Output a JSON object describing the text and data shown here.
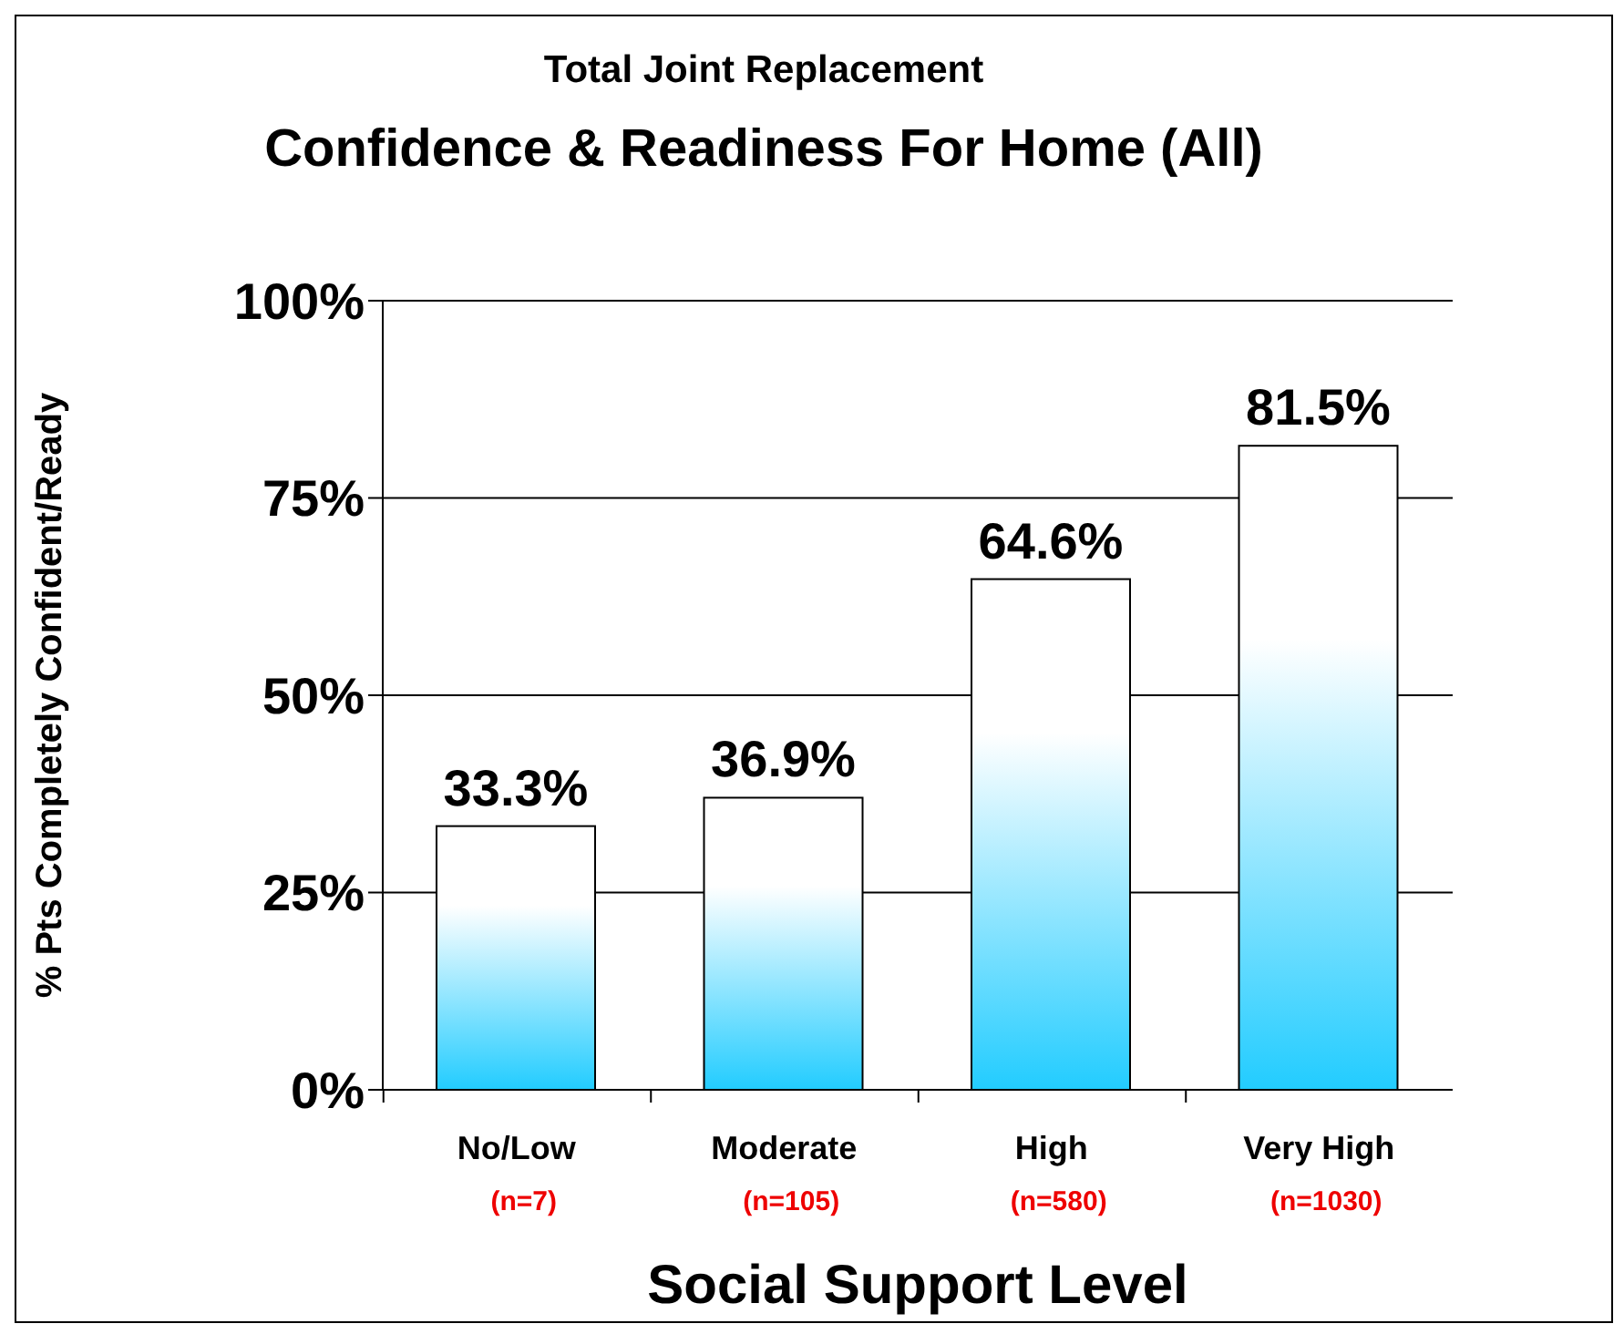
{
  "chart_data": {
    "type": "bar",
    "title": "Total Joint Replacement",
    "subtitle": "Confidence & Readiness For Home (All)",
    "xlabel": "Social Support Level",
    "ylabel": "% Pts Completely Confident/Ready",
    "categories": [
      "No/Low",
      "Moderate",
      "High",
      "Very High"
    ],
    "values": [
      33.3,
      36.9,
      64.6,
      81.5
    ],
    "color": "#22ccff",
    "value_labels": [
      "33.3%",
      "36.9%",
      "64.6%",
      "81.5%"
    ],
    "ylim": [
      0,
      100
    ],
    "yticks": [
      {
        "value": 0,
        "label": "0%"
      },
      {
        "value": 25,
        "label": "25%"
      },
      {
        "value": 50,
        "label": "50%"
      },
      {
        "value": 75,
        "label": "75%"
      },
      {
        "value": 100,
        "label": "100%"
      }
    ],
    "grid": "y",
    "annotations": [
      "(n=7)",
      "(n=105)",
      "(n=580)",
      "(n=1030)"
    ]
  }
}
